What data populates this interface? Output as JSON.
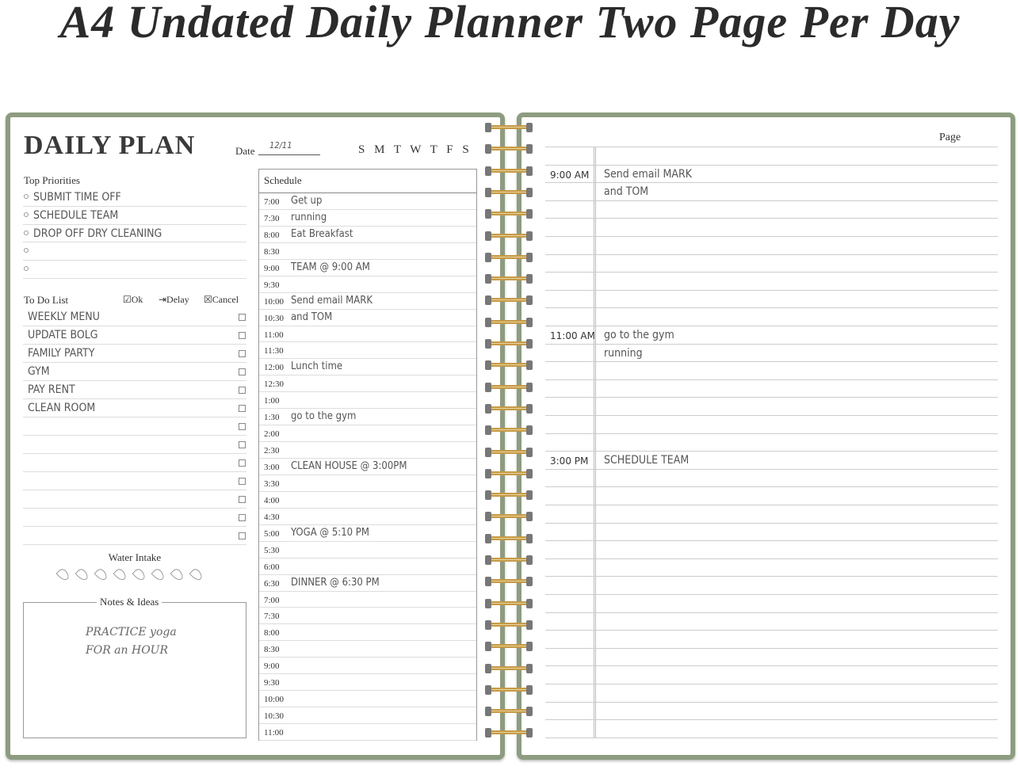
{
  "title": "A4 Undated Daily Planner Two Page Per Day",
  "left_page": {
    "heading": "DAILY PLAN",
    "date_label": "Date",
    "date_value": "12/11",
    "weekdays": "S M T W T F S",
    "priorities_label": "Top Priorities",
    "priorities": [
      "SUBMIT TIME OFF",
      "SCHEDULE TEAM",
      "DROP OFF DRY CLEANING",
      "",
      ""
    ],
    "todo_label": "To Do List",
    "legend": {
      "ok": "☑Ok",
      "delay": "⇥Delay",
      "cancel": "☒Cancel"
    },
    "todos": [
      "WEEKLY MENU",
      "UPDATE BOLG",
      "FAMILY PARTY",
      "GYM",
      "PAY RENT",
      "CLEAN ROOM",
      "",
      "",
      "",
      "",
      "",
      "",
      ""
    ],
    "water_label": "Water Intake",
    "water_drops": 8,
    "notes_label": "Notes & Ideas",
    "notes": [
      "PRACTICE yoga",
      "FOR an HOUR"
    ],
    "schedule_label": "Schedule",
    "schedule": [
      {
        "time": "7:00",
        "entry": "Get up"
      },
      {
        "time": "7:30",
        "entry": "running"
      },
      {
        "time": "8:00",
        "entry": "Eat Breakfast"
      },
      {
        "time": "8:30",
        "entry": ""
      },
      {
        "time": "9:00",
        "entry": "TEAM @ 9:00 AM"
      },
      {
        "time": "9:30",
        "entry": ""
      },
      {
        "time": "10:00",
        "entry": "Send email MARK"
      },
      {
        "time": "10:30",
        "entry": "and TOM"
      },
      {
        "time": "11:00",
        "entry": ""
      },
      {
        "time": "11:30",
        "entry": ""
      },
      {
        "time": "12:00",
        "entry": "Lunch time"
      },
      {
        "time": "12:30",
        "entry": ""
      },
      {
        "time": "1:00",
        "entry": ""
      },
      {
        "time": "1:30",
        "entry": "go to the gym"
      },
      {
        "time": "2:00",
        "entry": ""
      },
      {
        "time": "2:30",
        "entry": ""
      },
      {
        "time": "3:00",
        "entry": "CLEAN HOUSE @ 3:00PM"
      },
      {
        "time": "3:30",
        "entry": ""
      },
      {
        "time": "4:00",
        "entry": ""
      },
      {
        "time": "4:30",
        "entry": ""
      },
      {
        "time": "5:00",
        "entry": "YOGA @ 5:10 PM"
      },
      {
        "time": "5:30",
        "entry": ""
      },
      {
        "time": "6:00",
        "entry": ""
      },
      {
        "time": "6:30",
        "entry": "DINNER @ 6:30 PM"
      },
      {
        "time": "7:00",
        "entry": ""
      },
      {
        "time": "7:30",
        "entry": ""
      },
      {
        "time": "8:00",
        "entry": ""
      },
      {
        "time": "8:30",
        "entry": ""
      },
      {
        "time": "9:00",
        "entry": ""
      },
      {
        "time": "9:30",
        "entry": ""
      },
      {
        "time": "10:00",
        "entry": ""
      },
      {
        "time": "10:30",
        "entry": ""
      },
      {
        "time": "11:00",
        "entry": ""
      }
    ]
  },
  "right_page": {
    "page_label": "Page",
    "row_count": 33,
    "entries": [
      {
        "row": 1,
        "time": "9:00 AM",
        "entry": "Send email MARK"
      },
      {
        "row": 2,
        "time": "",
        "entry": "and TOM"
      },
      {
        "row": 10,
        "time": "11:00 AM",
        "entry": "go to the gym"
      },
      {
        "row": 11,
        "time": "",
        "entry": "running"
      },
      {
        "row": 17,
        "time": "3:00 PM",
        "entry": "SCHEDULE TEAM"
      }
    ]
  },
  "colors": {
    "cover": "#8d9c80",
    "coil": "#c59a45"
  }
}
